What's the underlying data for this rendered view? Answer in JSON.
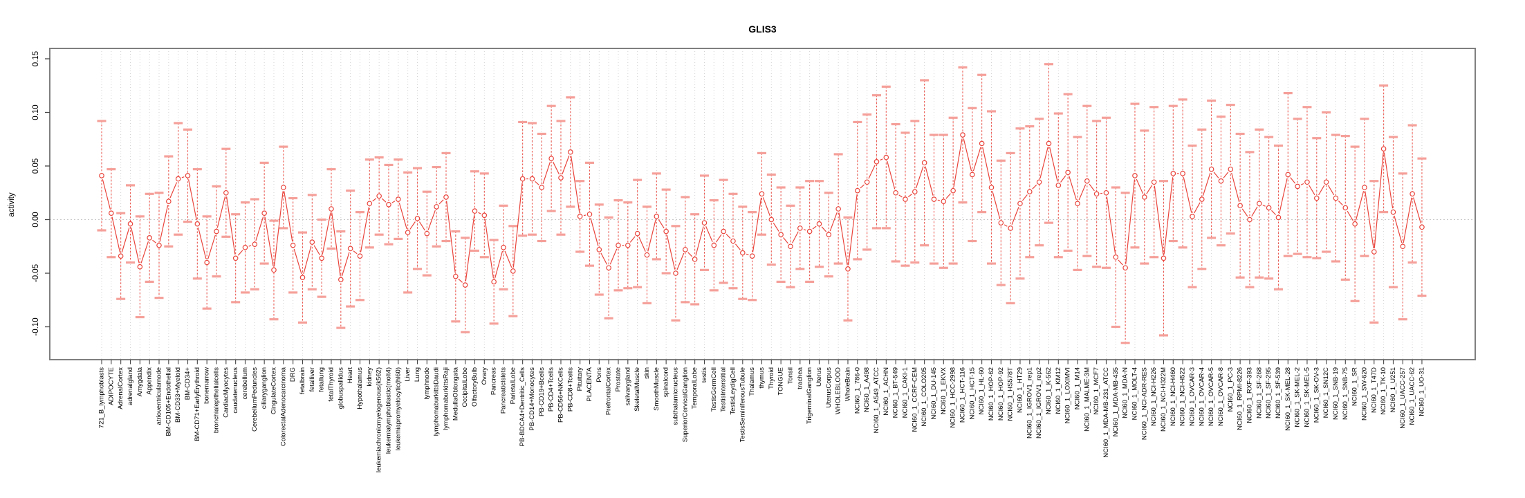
{
  "chart_data": {
    "type": "scatter",
    "title": "GLIS3",
    "ylabel": "activity",
    "xlabel": "",
    "legend": "none",
    "grid": "vertical dotted line per category, dotted horizontal line at y=0",
    "marker": "open circle with dashed vertical error bar and thick light-red caps (mean ± sd)",
    "ylim": [
      -0.129,
      0.159
    ],
    "ytick_values": [
      0.15,
      0.1,
      0.05,
      0.0,
      -0.05,
      -0.1
    ],
    "ytick_labels": [
      "0.15",
      "0.10",
      "0.05",
      "0.00",
      "-0.05",
      "-0.10"
    ],
    "categories": [
      "721_B_lymphoblasts",
      "ADIPOCYTE",
      "AdrenalCortex",
      "adrenalgland",
      "Amygdala",
      "Appendix",
      "atrioventricularnode",
      "BM-CD105+Endothelial",
      "BM-CD33+Myeloid",
      "BM-CD34+",
      "BM-CD71+EarlyErythroid",
      "bonemarrow",
      "bronchialepithelialcells",
      "CardiacMyocytes",
      "caudatenucleus",
      "cerebellum",
      "CerebellumPeduncles",
      "ciliaryganglion",
      "CingulateCortex",
      "ColorectalAdenocarcinoma",
      "DRG",
      "fetalbrain",
      "fetalliver",
      "fetallung",
      "fetalThyroid",
      "globuspallidus",
      "Heart",
      "Hypothalamus",
      "kidney",
      "leukemiachronicmyelogenous(k562)",
      "leukemialymphoblastic(molt4)",
      "leukemiapromyelocytic(hl60)",
      "Liver",
      "Lung",
      "lymphnode",
      "lymphomaburkittsDaudi",
      "lymphomaburkittsRaji",
      "MedullaOblongata",
      "OccipitalLobe",
      "OlfactoryBulb",
      "Ovary",
      "Pancreas",
      "PancreaticIslets",
      "ParietalLobe",
      "PB-BDCA4+Dentritic_Cells",
      "PB-CD14+Monocytes",
      "PB-CD19+Bcells",
      "PB-CD4+Tcells",
      "PB-CD56+NKCells",
      "PB-CD8+Tcells",
      "Pituitary",
      "PLACENTA",
      "Pons",
      "PrefrontalCortex",
      "Prostate",
      "salivarygland",
      "SkeletalMuscle",
      "skin",
      "SmoothMuscle",
      "spinalcord",
      "subthalamicnucleus",
      "SuperiorCervicalGanglion",
      "TemporalLobe",
      "testis",
      "TestisGermCell",
      "TestisInterstitial",
      "TestisLeydigCell",
      "TestisSeminiferousTubule",
      "Thalamus",
      "thymus",
      "Thyroid",
      "TONGUE",
      "Tonsil",
      "trachea",
      "TrigeminalGanglion",
      "Uterus",
      "UterusCorpus",
      "WHOLEBLOOD",
      "WholeBrain",
      "NCI60_1_786-0",
      "NCI60_1_A498",
      "NCI60_1_A549_ATCC",
      "NCI60_1_ACHN",
      "NCI60_1_BT-549",
      "NCI60_1_CAKI-1",
      "NCI60_1_CCRF-CEM",
      "NCI60_1_COLO205",
      "NCI60_1_DU-145",
      "NCI60_1_EKVX",
      "NCI60_1_HCC-2998",
      "NCI60_1_HCT-116",
      "NCI60_1_HCT-15",
      "NCI60_1_HL-60",
      "NCI60_1_HOP-62",
      "NCI60_1_HOP-92",
      "NCI60_1_HS578T",
      "NCI60_1_HT29",
      "NCI60_1_IGROV1_rep1",
      "NCI60_1_IGROV1_rep2",
      "NCI60_1_K-562",
      "NCI60_1_KM12",
      "NCI60_1_LOXIMVI",
      "NCI60_1_M14",
      "NCI60_1_MALME-3M",
      "NCI60_1_MCF7",
      "NCI60_1_MDA-MB-231_ATCC",
      "NCI60_1_MDA-MB-435",
      "NCI60_1_MDA-N",
      "NCI60_1_MOLT-4",
      "NCI60_1_NCI-ADR-RES",
      "NCI60_1_NCI-H226",
      "NCI60_1_NCI-H322M",
      "NCI60_1_NCI-H460",
      "NCI60_1_NCI-H522",
      "NCI60_1_OVCAR-3",
      "NCI60_1_OVCAR-4",
      "NCI60_1_OVCAR-5",
      "NCI60_1_OVCAR-8",
      "NCI60_1_PC-3",
      "NCI60_1_RPMI-8226",
      "NCI60_1_RXF-393",
      "NCI60_1_SF-268",
      "NCI60_1_SF-295",
      "NCI60_1_SF-539",
      "NCI60_1_SK-MEL-28",
      "NCI60_1_SK-MEL-2",
      "NCI60_1_SK-MEL-5",
      "NCI60_1_SK-OV-3",
      "NCI60_1_SN12C",
      "NCI60_1_SNB-19",
      "NCI60_1_SNB-75",
      "NCI60_1_SR",
      "NCI60_1_SW-620",
      "NCI60_1_T47D",
      "NCI60_1_TK-10",
      "NCI60_1_U251",
      "NCI60_1_UACC-257",
      "NCI60_1_UACC-62",
      "NCI60_1_UO-31"
    ],
    "values": [
      0.041,
      0.006,
      -0.034,
      -0.004,
      -0.044,
      -0.017,
      -0.024,
      0.017,
      0.038,
      0.041,
      -0.004,
      -0.04,
      -0.011,
      0.025,
      -0.036,
      -0.026,
      -0.023,
      0.006,
      -0.047,
      0.03,
      -0.024,
      -0.054,
      -0.021,
      -0.036,
      0.01,
      -0.056,
      -0.027,
      -0.034,
      0.015,
      0.022,
      0.014,
      0.019,
      -0.012,
      0.001,
      -0.013,
      0.012,
      0.021,
      -0.053,
      -0.061,
      0.008,
      0.004,
      -0.058,
      -0.026,
      -0.048,
      0.038,
      0.038,
      0.03,
      0.057,
      0.039,
      0.063,
      0.003,
      0.005,
      -0.028,
      -0.045,
      -0.024,
      -0.024,
      -0.013,
      -0.033,
      0.003,
      -0.011,
      -0.05,
      -0.028,
      -0.037,
      -0.003,
      -0.024,
      -0.011,
      -0.02,
      -0.031,
      -0.034,
      0.024,
      0.0,
      -0.014,
      -0.025,
      -0.008,
      -0.011,
      -0.004,
      -0.014,
      0.01,
      -0.046,
      0.027,
      0.035,
      0.054,
      0.058,
      0.025,
      0.019,
      0.026,
      0.053,
      0.019,
      0.017,
      0.027,
      0.079,
      0.042,
      0.071,
      0.03,
      -0.003,
      -0.008,
      0.015,
      0.026,
      0.035,
      0.071,
      0.032,
      0.044,
      0.015,
      0.036,
      0.024,
      0.025,
      -0.035,
      -0.045,
      0.041,
      0.021,
      0.035,
      -0.036,
      0.043,
      0.043,
      0.003,
      0.019,
      0.047,
      0.036,
      0.047,
      0.013,
      0.0,
      0.015,
      0.011,
      0.002,
      0.042,
      0.031,
      0.035,
      0.02,
      0.035,
      0.02,
      0.011,
      -0.004,
      0.03,
      -0.03,
      0.066,
      0.007,
      -0.025,
      0.024,
      -0.007
    ],
    "errors": [
      0.051,
      0.041,
      0.04,
      0.036,
      0.047,
      0.041,
      0.049,
      0.042,
      0.052,
      0.043,
      0.051,
      0.043,
      0.042,
      0.041,
      0.041,
      0.042,
      0.042,
      0.047,
      0.046,
      0.038,
      0.044,
      0.042,
      0.044,
      0.036,
      0.037,
      0.045,
      0.054,
      0.041,
      0.041,
      0.036,
      0.037,
      0.037,
      0.056,
      0.047,
      0.039,
      0.037,
      0.041,
      0.042,
      0.044,
      0.037,
      0.039,
      0.039,
      0.039,
      0.042,
      0.053,
      0.052,
      0.05,
      0.049,
      0.053,
      0.051,
      0.033,
      0.048,
      0.042,
      0.047,
      0.042,
      0.04,
      0.05,
      0.045,
      0.04,
      0.039,
      0.044,
      0.049,
      0.042,
      0.044,
      0.042,
      0.048,
      0.044,
      0.043,
      0.041,
      0.038,
      0.042,
      0.044,
      0.038,
      0.038,
      0.047,
      0.04,
      0.039,
      0.051,
      0.048,
      0.064,
      0.063,
      0.062,
      0.066,
      0.064,
      0.062,
      0.066,
      0.077,
      0.06,
      0.062,
      0.068,
      0.063,
      0.062,
      0.064,
      0.071,
      0.058,
      0.07,
      0.07,
      0.061,
      0.059,
      0.074,
      0.067,
      0.073,
      0.062,
      0.07,
      0.068,
      0.07,
      0.065,
      0.07,
      0.067,
      0.062,
      0.07,
      0.072,
      0.063,
      0.069,
      0.066,
      0.065,
      0.064,
      0.06,
      0.06,
      0.067,
      0.063,
      0.069,
      0.066,
      0.067,
      0.076,
      0.063,
      0.07,
      0.056,
      0.065,
      0.059,
      0.067,
      0.072,
      0.064,
      0.066,
      0.059,
      0.07,
      0.068,
      0.064,
      0.064
    ]
  },
  "colors": {
    "series_red": "#e9443b",
    "error_line_red": "#ed5a52",
    "cap_red": "#f5a09a",
    "grid_gray": "#d2d2d2",
    "zero_line_gray": "#c8c8c8",
    "box_gray": "#7f7f7f",
    "tick_gray": "#444444",
    "text_black": "#000000"
  }
}
